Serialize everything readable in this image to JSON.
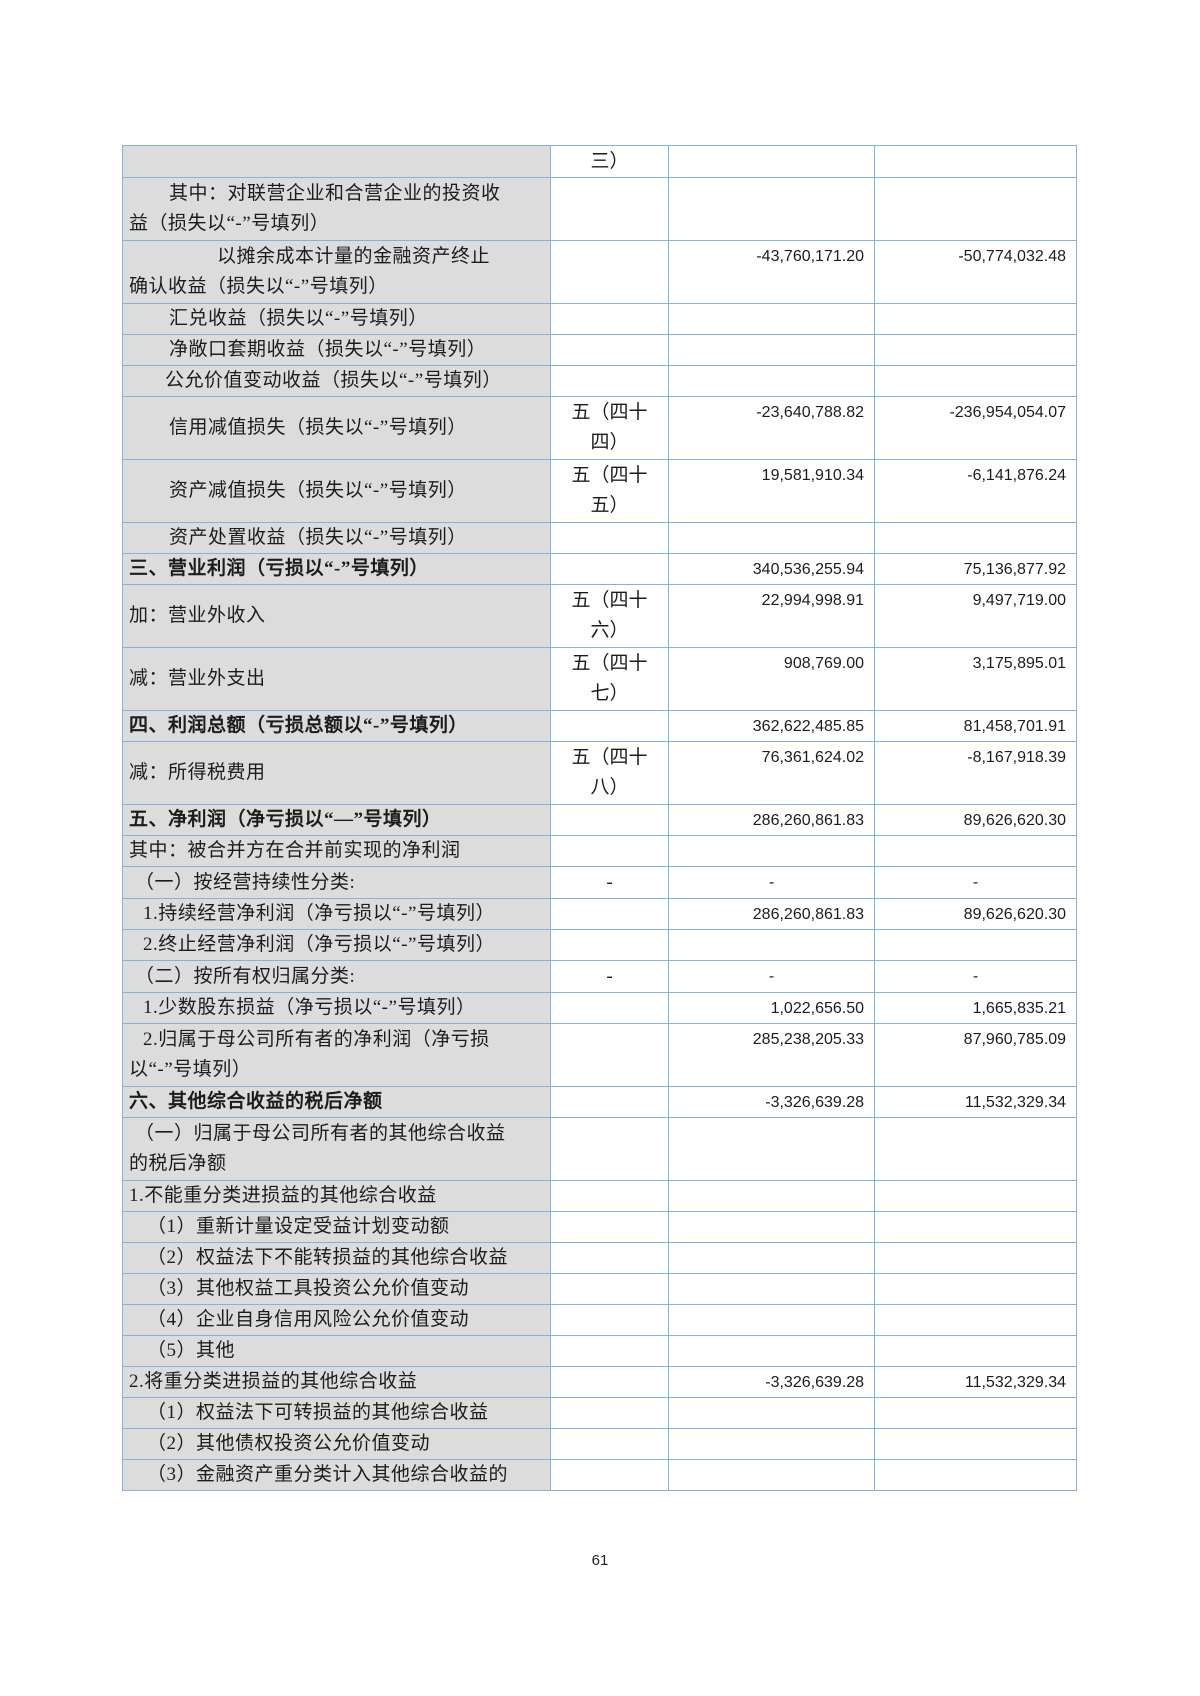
{
  "page": {
    "number": "61"
  },
  "colors": {
    "border": "#85b2dc",
    "row_shade": "#dcdcdc"
  },
  "table": {
    "rows": [
      {
        "label": "",
        "note": "三）",
        "current": "",
        "prior": "",
        "bold": false,
        "tall": false,
        "indent": 0
      },
      {
        "label": "其中：对联营企业和合营企业的投资收\n益（损失以“-”号填列）",
        "note": "",
        "current": "",
        "prior": "",
        "bold": false,
        "tall": true,
        "indent": 40
      },
      {
        "label": "以摊余成本计量的金融资产终止\n确认收益（损失以“-”号填列）",
        "note": "",
        "current": "-43,760,171.20",
        "prior": "-50,774,032.48",
        "bold": false,
        "tall": true,
        "indent": 88
      },
      {
        "label": "汇兑收益（损失以“-”号填列）",
        "note": "",
        "current": "",
        "prior": "",
        "bold": false,
        "tall": false,
        "indent": 40
      },
      {
        "label": "净敞口套期收益（损失以“-”号填列）",
        "note": "",
        "current": "",
        "prior": "",
        "bold": false,
        "tall": false,
        "indent": 40
      },
      {
        "label": "公允价值变动收益（损失以“-”号填列）",
        "note": "",
        "current": "",
        "prior": "",
        "bold": false,
        "tall": false,
        "indent": 36
      },
      {
        "label": "信用减值损失（损失以“-”号填列）",
        "note": "五（四十\n四）",
        "current": "-23,640,788.82",
        "prior": "-236,954,054.07",
        "bold": false,
        "tall": true,
        "indent": 40
      },
      {
        "label": "资产减值损失（损失以“-”号填列）",
        "note": "五（四十\n五）",
        "current": "19,581,910.34",
        "prior": "-6,141,876.24",
        "bold": false,
        "tall": true,
        "indent": 40
      },
      {
        "label": "资产处置收益（损失以“-”号填列）",
        "note": "",
        "current": "",
        "prior": "",
        "bold": false,
        "tall": false,
        "indent": 40
      },
      {
        "label": "三、营业利润（亏损以“-”号填列）",
        "note": "",
        "current": "340,536,255.94",
        "prior": "75,136,877.92",
        "bold": true,
        "tall": false,
        "indent": 0
      },
      {
        "label": "加：营业外收入",
        "note": "五（四十\n六）",
        "current": "22,994,998.91",
        "prior": "9,497,719.00",
        "bold": false,
        "tall": true,
        "indent": 0
      },
      {
        "label": "减：营业外支出",
        "note": "五（四十\n七）",
        "current": "908,769.00",
        "prior": "3,175,895.01",
        "bold": false,
        "tall": true,
        "indent": 0
      },
      {
        "label": "四、利润总额（亏损总额以“-”号填列）",
        "note": "",
        "current": "362,622,485.85",
        "prior": "81,458,701.91",
        "bold": true,
        "tall": false,
        "indent": 0
      },
      {
        "label": "减：所得税费用",
        "note": "五（四十\n八）",
        "current": "76,361,624.02",
        "prior": "-8,167,918.39",
        "bold": false,
        "tall": true,
        "indent": 0
      },
      {
        "label": "五、净利润（净亏损以“—”号填列）",
        "note": "",
        "current": "286,260,861.83",
        "prior": "89,626,620.30",
        "bold": true,
        "tall": false,
        "indent": 0
      },
      {
        "label": "其中：被合并方在合并前实现的净利润",
        "note": "",
        "current": "",
        "prior": "",
        "bold": false,
        "tall": false,
        "indent": 0
      },
      {
        "label": "（一）按经营持续性分类:",
        "note": "-",
        "current": "-",
        "prior": "-",
        "bold": false,
        "tall": false,
        "indent": 6
      },
      {
        "label": "1.持续经营净利润（净亏损以“-”号填列）",
        "note": "",
        "current": "286,260,861.83",
        "prior": "89,626,620.30",
        "bold": false,
        "tall": false,
        "indent": 14
      },
      {
        "label": "2.终止经营净利润（净亏损以“-”号填列）",
        "note": "",
        "current": "",
        "prior": "",
        "bold": false,
        "tall": false,
        "indent": 14
      },
      {
        "label": "（二）按所有权归属分类:",
        "note": "-",
        "current": "-",
        "prior": "-",
        "bold": false,
        "tall": false,
        "indent": 6
      },
      {
        "label": "1.少数股东损益（净亏损以“-”号填列）",
        "note": "",
        "current": "1,022,656.50",
        "prior": "1,665,835.21",
        "bold": false,
        "tall": false,
        "indent": 14
      },
      {
        "label": "2.归属于母公司所有者的净利润（净亏损\n以“-”号填列）",
        "note": "",
        "current": "285,238,205.33",
        "prior": "87,960,785.09",
        "bold": false,
        "tall": true,
        "indent": 14
      },
      {
        "label": "六、其他综合收益的税后净额",
        "note": "",
        "current": "-3,326,639.28",
        "prior": "11,532,329.34",
        "bold": true,
        "tall": false,
        "indent": 0
      },
      {
        "label": "（一）归属于母公司所有者的其他综合收益\n的税后净额",
        "note": "",
        "current": "",
        "prior": "",
        "bold": false,
        "tall": true,
        "indent": 6
      },
      {
        "label": "1.不能重分类进损益的其他综合收益",
        "note": "",
        "current": "",
        "prior": "",
        "bold": false,
        "tall": false,
        "indent": 0
      },
      {
        "label": "（1）重新计量设定受益计划变动额",
        "note": "",
        "current": "",
        "prior": "",
        "bold": false,
        "tall": false,
        "indent": 18
      },
      {
        "label": "（2）权益法下不能转损益的其他综合收益",
        "note": "",
        "current": "",
        "prior": "",
        "bold": false,
        "tall": false,
        "indent": 18
      },
      {
        "label": "（3）其他权益工具投资公允价值变动",
        "note": "",
        "current": "",
        "prior": "",
        "bold": false,
        "tall": false,
        "indent": 18
      },
      {
        "label": "（4）企业自身信用风险公允价值变动",
        "note": "",
        "current": "",
        "prior": "",
        "bold": false,
        "tall": false,
        "indent": 18
      },
      {
        "label": "（5）其他",
        "note": "",
        "current": "",
        "prior": "",
        "bold": false,
        "tall": false,
        "indent": 18
      },
      {
        "label": "2.将重分类进损益的其他综合收益",
        "note": "",
        "current": "-3,326,639.28",
        "prior": "11,532,329.34",
        "bold": false,
        "tall": false,
        "indent": 0
      },
      {
        "label": "（1）权益法下可转损益的其他综合收益",
        "note": "",
        "current": "",
        "prior": "",
        "bold": false,
        "tall": false,
        "indent": 18
      },
      {
        "label": "（2）其他债权投资公允价值变动",
        "note": "",
        "current": "",
        "prior": "",
        "bold": false,
        "tall": false,
        "indent": 18
      },
      {
        "label": "（3）金融资产重分类计入其他综合收益的",
        "note": "",
        "current": "",
        "prior": "",
        "bold": false,
        "tall": false,
        "indent": 18
      }
    ]
  }
}
